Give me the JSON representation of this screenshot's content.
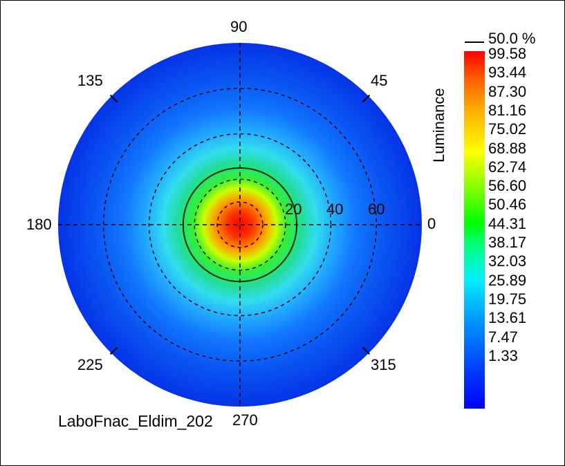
{
  "chart_data": {
    "type": "heatmap",
    "subtype": "polar",
    "footer_text": "LaboFnac_Eldim_202",
    "colorbar": {
      "label": "Luminance",
      "contour_legend": "50.0 %",
      "ticks": [
        "99.58",
        "93.44",
        "87.30",
        "81.16",
        "75.02",
        "68.88",
        "62.74",
        "56.60",
        "50.46",
        "44.31",
        "38.17",
        "32.03",
        "25.89",
        "19.75",
        "13.61",
        "7.47",
        "1.33"
      ],
      "range": [
        1.33,
        99.58
      ],
      "colormap": "jet"
    },
    "angle_labels": [
      {
        "angle": 0,
        "text": "0"
      },
      {
        "angle": 45,
        "text": "45"
      },
      {
        "angle": 90,
        "text": "90"
      },
      {
        "angle": 135,
        "text": "135"
      },
      {
        "angle": 180,
        "text": "180"
      },
      {
        "angle": 225,
        "text": "225"
      },
      {
        "angle": 270,
        "text": "270"
      },
      {
        "angle": 315,
        "text": "315"
      }
    ],
    "radial_labels": [
      "20",
      "40",
      "60"
    ],
    "radial_rings": [
      10,
      20,
      40,
      60
    ],
    "radial_max": 80,
    "contour_level_percent": 50.0,
    "contour_radius": 25,
    "peak_value": 99.58,
    "peak_location": [
      0,
      0
    ],
    "grid": true
  }
}
